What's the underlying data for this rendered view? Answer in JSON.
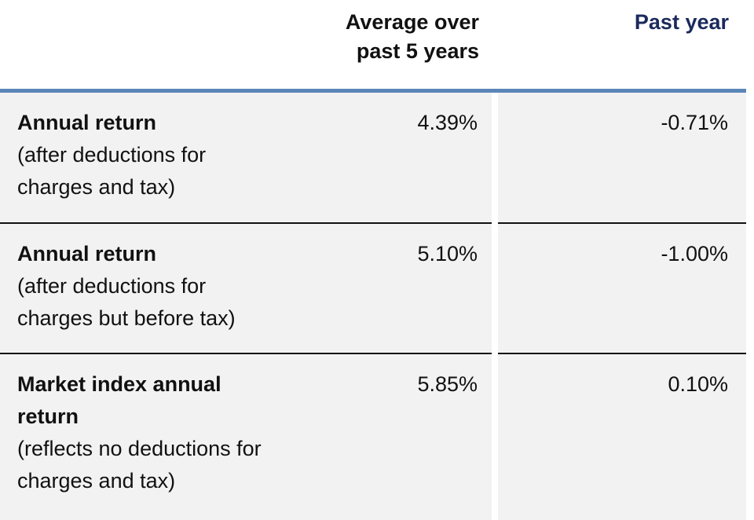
{
  "table": {
    "columns": [
      "Average over past 5 years",
      "Past year"
    ],
    "rows": [
      {
        "label": "Annual return",
        "note": "(after deductions for charges and tax)",
        "values": [
          "4.39%",
          "-0.71%"
        ]
      },
      {
        "label": "Annual return",
        "note": "(after deductions for charges but before tax)",
        "values": [
          "5.10%",
          "-1.00%"
        ]
      },
      {
        "label": "Market index annual return",
        "note": "(reflects no deductions for charges and tax)",
        "values": [
          "5.85%",
          "0.10%"
        ]
      }
    ]
  }
}
